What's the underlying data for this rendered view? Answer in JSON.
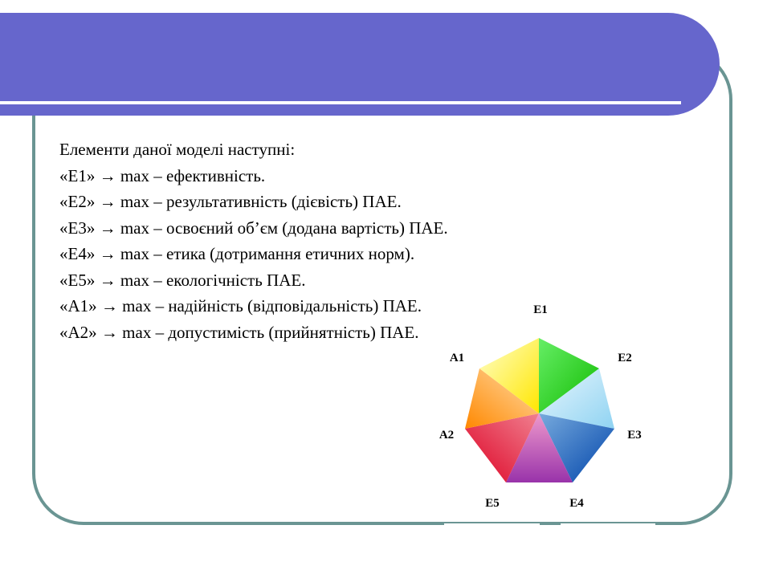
{
  "lines": [
    "Елементи даної моделі наступні:",
    "«Е1» → max – ефективність.",
    "«Е2» → max – результативність (дієвість) ПАЕ.",
    "«Е3» → max – освоєний об’єм (додана вартість) ПАЕ.",
    "«Е4» → max – етика (дотримання етичних норм).",
    "«Е5» → max – екологічність ПАЕ.",
    "«А1» → max – надійність (відповідальність) ПАЕ.",
    "«А2» → max – допустимість (прийнятність) ПАЕ."
  ],
  "diagram": {
    "labels": {
      "e1": "Е1",
      "e2": "Е2",
      "e3": "Е3",
      "e4": "Е4",
      "e5": "Е5",
      "a2": "А2",
      "a1": "А1"
    },
    "colors": {
      "e1": "#22cc00",
      "e2": "#aadcf5",
      "e3": "#0055bb",
      "e4": "#bb55bb",
      "e5": "#ee1133",
      "a2": "#ff9922",
      "a1": "#ffee00"
    }
  },
  "theme": {
    "header": "#6666cc",
    "frame": "#6a9593"
  }
}
